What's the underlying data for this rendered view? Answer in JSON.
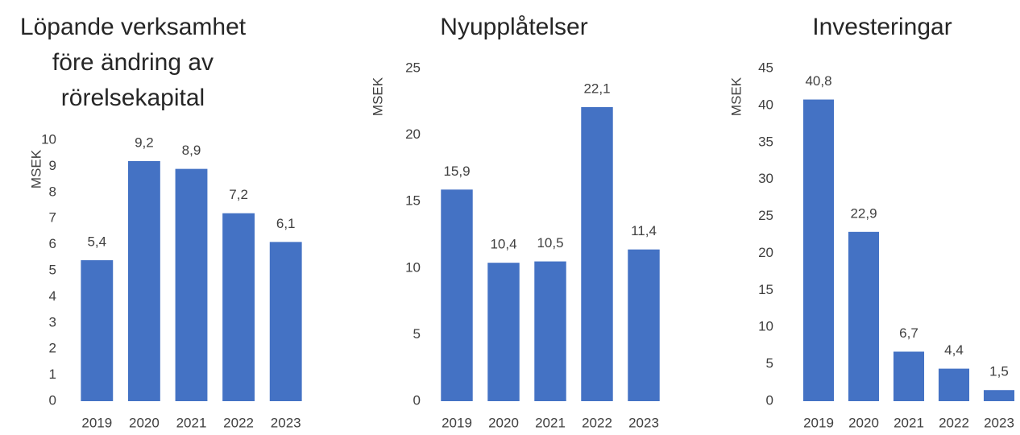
{
  "chart_data": [
    {
      "type": "bar",
      "title": "Löpande verksamhet före ändring av rörelsekapital",
      "y_label": "MSEK",
      "categories": [
        "2019",
        "2020",
        "2021",
        "2022",
        "2023"
      ],
      "values": [
        5.4,
        9.2,
        8.9,
        7.2,
        6.1
      ],
      "value_labels": [
        "5,4",
        "9,2",
        "8,9",
        "7,2",
        "6,1"
      ],
      "color": "#4472c4",
      "ylim": [
        0,
        10
      ],
      "yticks": [
        0,
        1,
        2,
        3,
        4,
        5,
        6,
        7,
        8,
        9,
        10
      ],
      "grid": false
    },
    {
      "type": "bar",
      "title": "Nyupplåtelser",
      "y_label": "MSEK",
      "categories": [
        "2019",
        "2020",
        "2021",
        "2022",
        "2023"
      ],
      "values": [
        15.9,
        10.4,
        10.5,
        22.1,
        11.4
      ],
      "value_labels": [
        "15,9",
        "10,4",
        "10,5",
        "22,1",
        "11,4"
      ],
      "color": "#4472c4",
      "ylim": [
        0,
        25
      ],
      "yticks": [
        0,
        5,
        10,
        15,
        20,
        25
      ],
      "grid": false
    },
    {
      "type": "bar",
      "title": "Investeringar",
      "y_label": "MSEK",
      "categories": [
        "2019",
        "2020",
        "2021",
        "2022",
        "2023"
      ],
      "values": [
        40.8,
        22.9,
        6.7,
        4.4,
        1.5
      ],
      "value_labels": [
        "40,8",
        "22,9",
        "6,7",
        "4,4",
        "1,5"
      ],
      "color": "#4472c4",
      "ylim": [
        0,
        45
      ],
      "yticks": [
        0,
        5,
        10,
        15,
        20,
        25,
        30,
        35,
        40,
        45
      ],
      "grid": false
    }
  ]
}
